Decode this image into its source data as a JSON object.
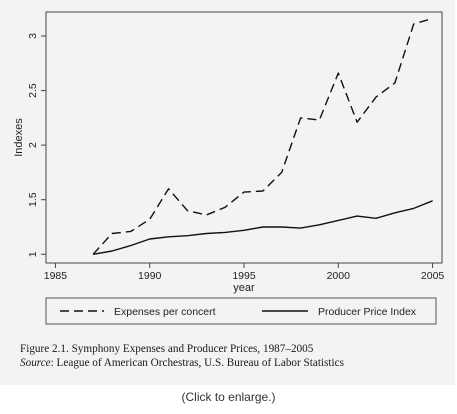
{
  "chart_data": {
    "type": "line",
    "x_label": "year",
    "y_label": "Indexes",
    "xlim": [
      1984.5,
      2005.5
    ],
    "ylim": [
      0.92,
      3.22
    ],
    "x_ticks": [
      1985,
      1990,
      1995,
      2000,
      2005
    ],
    "y_ticks": [
      1,
      1.5,
      2,
      2.5,
      3
    ],
    "y_tick_labels": [
      "1",
      "1.5",
      "2",
      "2.5",
      "3"
    ],
    "grid": false,
    "legend_position": "bottom",
    "series": [
      {
        "name": "Expenses per concert",
        "style": "dashed",
        "x": [
          1987,
          1988,
          1989,
          1990,
          1991,
          1992,
          1993,
          1994,
          1995,
          1996,
          1997,
          1998,
          1999,
          2000,
          2001,
          2002,
          2003,
          2004,
          2005
        ],
        "y": [
          1.0,
          1.19,
          1.21,
          1.32,
          1.6,
          1.4,
          1.36,
          1.43,
          1.57,
          1.58,
          1.75,
          2.25,
          2.23,
          2.66,
          2.21,
          2.44,
          2.57,
          3.11,
          3.16
        ]
      },
      {
        "name": "Producer Price Index",
        "style": "solid",
        "x": [
          1987,
          1988,
          1989,
          1990,
          1991,
          1992,
          1993,
          1994,
          1995,
          1996,
          1997,
          1998,
          1999,
          2000,
          2001,
          2002,
          2003,
          2004,
          2005
        ],
        "y": [
          1.0,
          1.03,
          1.08,
          1.14,
          1.16,
          1.17,
          1.19,
          1.2,
          1.22,
          1.25,
          1.25,
          1.24,
          1.27,
          1.31,
          1.35,
          1.33,
          1.38,
          1.42,
          1.49
        ]
      }
    ]
  },
  "caption": {
    "figure_line": "Figure 2.1.  Symphony Expenses and Producer Prices, 1987–2005",
    "source_label": "Source",
    "source_text": ": League of American Orchestras, U.S. Bureau of Labor Statistics"
  },
  "enlarge_link": "(Click to enlarge.)"
}
